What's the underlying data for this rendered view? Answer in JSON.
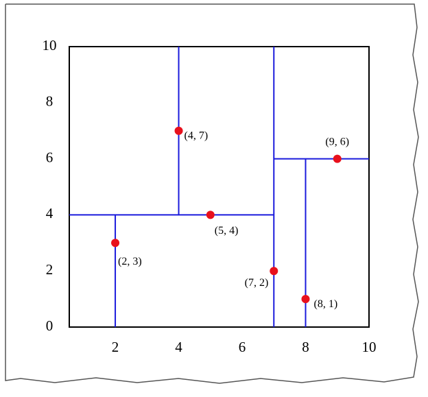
{
  "chart_data": {
    "type": "scatter",
    "x": [
      2,
      5,
      4,
      7,
      8,
      9
    ],
    "y": [
      3,
      4,
      7,
      2,
      1,
      6
    ],
    "value_labels": [
      "(2, 3)",
      "(5, 4)",
      "(4, 7)",
      "(7, 2)",
      "(8, 1)",
      "(9, 6)"
    ],
    "color": "#e8101c",
    "segments": [
      {
        "x": [
          7,
          7
        ],
        "y": [
          0,
          10
        ]
      },
      {
        "x": [
          0.55,
          7
        ],
        "y": [
          4,
          4
        ]
      },
      {
        "x": [
          2,
          2
        ],
        "y": [
          0,
          4
        ]
      },
      {
        "x": [
          4,
          4
        ],
        "y": [
          4,
          10
        ]
      },
      {
        "x": [
          7,
          10
        ],
        "y": [
          6,
          6
        ]
      },
      {
        "x": [
          8,
          8
        ],
        "y": [
          0,
          6
        ]
      }
    ],
    "segment_color": "#1a1adc",
    "xlim": [
      0.55,
      10
    ],
    "ylim": [
      0,
      10
    ],
    "xticks": [
      2,
      4,
      6,
      8,
      10
    ],
    "yticks": [
      0,
      2,
      4,
      6,
      8,
      10
    ]
  }
}
